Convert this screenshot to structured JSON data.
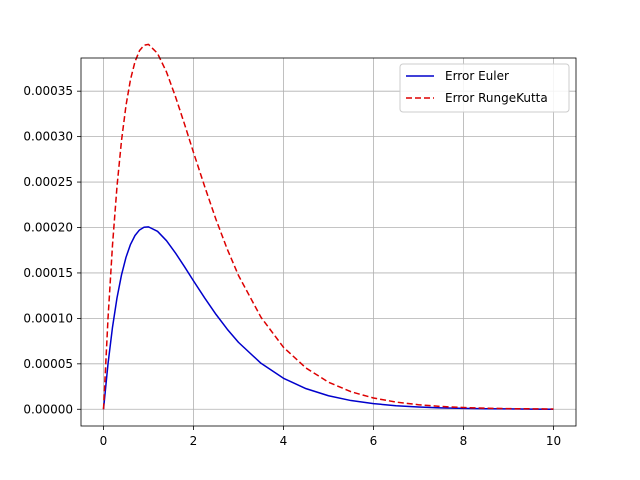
{
  "chart_data": {
    "type": "line",
    "title": "",
    "xlabel": "",
    "ylabel": "",
    "xlim": [
      -0.5,
      10.5
    ],
    "ylim": [
      -1.84e-05,
      0.0003865
    ],
    "grid": true,
    "legend_position": "top-right",
    "xticks": [
      0,
      2,
      4,
      6,
      8,
      10
    ],
    "xtick_labels": [
      "0",
      "2",
      "4",
      "6",
      "8",
      "10"
    ],
    "yticks": [
      0.0,
      5e-05,
      0.0001,
      0.00015,
      0.0002,
      0.00025,
      0.0003,
      0.00035
    ],
    "ytick_labels": [
      "0.00000",
      "0.00005",
      "0.00010",
      "0.00015",
      "0.00020",
      "0.00025",
      "0.00030",
      "0.00035"
    ],
    "x": [
      0,
      0.1,
      0.2,
      0.3,
      0.4,
      0.5,
      0.6,
      0.7,
      0.8,
      0.9,
      1.0,
      1.2,
      1.4,
      1.6,
      1.8,
      2.0,
      2.25,
      2.5,
      2.75,
      3.0,
      3.5,
      4.0,
      4.5,
      5.0,
      5.5,
      6.0,
      6.5,
      7.0,
      7.5,
      8.0,
      8.5,
      9.0,
      9.5,
      10.0
    ],
    "series": [
      {
        "name": "Error Euler",
        "color": "#0000cc",
        "dash": "solid",
        "values": [
          0.0,
          4.99e-05,
          9.03e-05,
          0.0001226,
          0.0001478,
          0.0001672,
          0.0001814,
          0.0001912,
          0.0001973,
          0.0002003,
          0.0002007,
          0.0001958,
          0.0001855,
          0.0001719,
          0.0001569,
          0.0001413,
          0.0001224,
          0.0001044,
          8.81e-05,
          7.36e-05,
          5.06e-05,
          3.41e-05,
          2.27e-05,
          1.49e-05,
          9.6e-06,
          6.2e-06,
          3.9e-06,
          2.5e-06,
          1.5e-06,
          1e-06,
          6e-07,
          4e-07,
          2e-07,
          1e-07
        ]
      },
      {
        "name": "Error RungeKutta",
        "color": "#dd0000",
        "dash": "dashed",
        "values": [
          0.0,
          9.98e-05,
          0.0001806,
          0.0002452,
          0.0002956,
          0.0003343,
          0.0003629,
          0.0003824,
          0.0003946,
          0.0004005,
          0.0004015,
          0.0003916,
          0.0003711,
          0.0003439,
          0.0003138,
          0.0002826,
          0.0002448,
          0.0002088,
          0.0001762,
          0.0001472,
          0.0001012,
          6.82e-05,
          4.54e-05,
          2.98e-05,
          1.93e-05,
          1.24e-05,
          7.9e-06,
          5e-06,
          3.1e-06,
          1.9e-06,
          1.2e-06,
          7e-07,
          5e-07,
          3e-07
        ]
      }
    ]
  }
}
